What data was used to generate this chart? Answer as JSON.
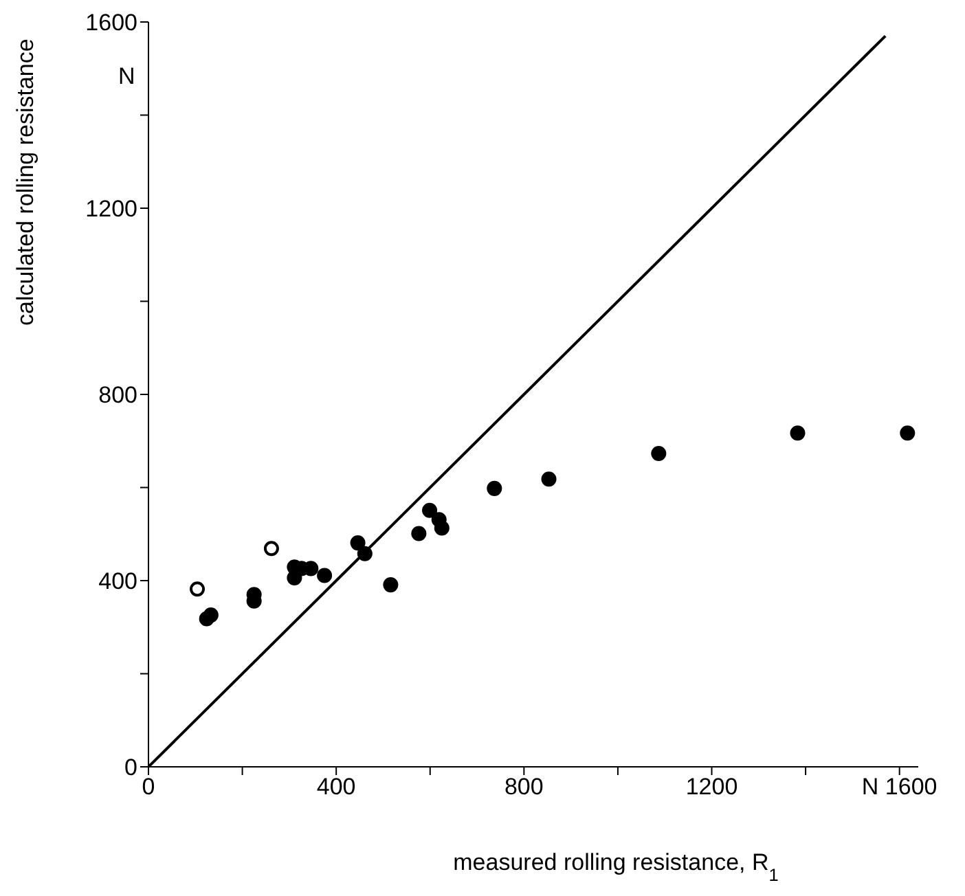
{
  "chart_data": {
    "type": "scatter",
    "xlabel": "measured rolling resistance, R$_{1}$",
    "ylabel": "calculated rolling resistance",
    "xlim": [
      0,
      1640
    ],
    "ylim": [
      0,
      1600
    ],
    "xticks": [
      0,
      {
        "value": 200,
        "label": null
      },
      400,
      {
        "value": 600,
        "label": null
      },
      800,
      {
        "value": 1000,
        "label": null
      },
      1200,
      {
        "value": 1400,
        "label": null
      },
      {
        "value": 1600,
        "label": "N 1600"
      }
    ],
    "yticks": [
      0,
      {
        "value": 200,
        "label": null
      },
      400,
      {
        "value": 600,
        "label": null
      },
      800,
      {
        "value": 1000,
        "label": null
      },
      1200,
      {
        "value": 1400,
        "label": null
      },
      1600
    ],
    "annotations": [
      "N"
    ],
    "series": [
      {
        "color": "#000000",
        "x": [
          124,
          133,
          225,
          225,
          311,
          311,
          326,
          346,
          375,
          446,
          461,
          516,
          576,
          599,
          619,
          625,
          737,
          853,
          1087,
          1383,
          1617
        ],
        "values": [
          318,
          326,
          370,
          356,
          429,
          406,
          426,
          426,
          411,
          481,
          458,
          391,
          501,
          551,
          531,
          513,
          598,
          618,
          673,
          717,
          717
        ]
      },
      {
        "color": "#000000",
        "x": [
          104,
          262
        ],
        "values": [
          382,
          469
        ]
      },
      {
        "type": "line",
        "color": "#000000",
        "marker": "none",
        "x": [
          0,
          1570
        ],
        "values": [
          0,
          1570
        ]
      }
    ]
  }
}
